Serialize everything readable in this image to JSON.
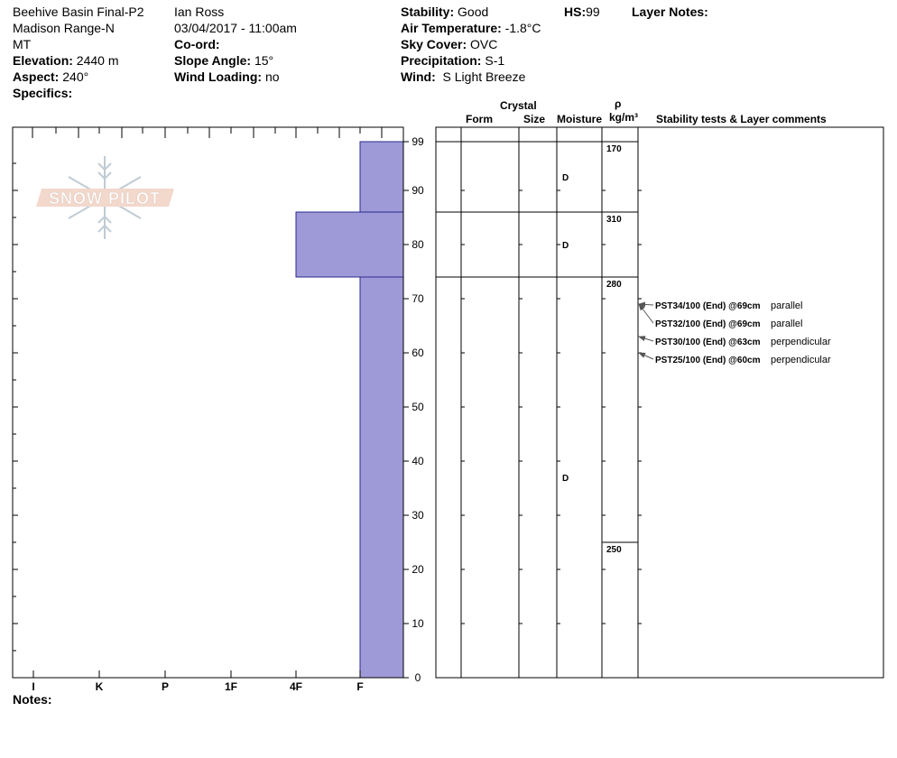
{
  "header": {
    "location": "Beehive Basin Final-P2",
    "range": "Madison Range-N",
    "state": "MT",
    "elevation_label": "Elevation:",
    "elevation": "2440 m",
    "aspect_label": "Aspect:",
    "aspect": "240°",
    "specifics_label": "Specifics:",
    "observer": "Ian Ross",
    "datetime": "03/04/2017 - 11:00am",
    "coord_label": "Co-ord:",
    "slope_label": "Slope Angle:",
    "slope": "15°",
    "wind_loading_label": "Wind Loading:",
    "wind_loading": "no",
    "stability_label": "Stability:",
    "stability": "Good",
    "air_temp_label": "Air Temperature:",
    "air_temp": "-1.8°C",
    "sky_label": "Sky Cover:",
    "sky": "OVC",
    "precip_label": "Precipitation:",
    "precip": "S-1",
    "wind_label": "Wind:",
    "wind": "S Light Breeze",
    "hs_label": "HS:",
    "hs": "99",
    "layer_notes_label": "Layer Notes:"
  },
  "columns": {
    "crystal": "Crystal",
    "form": "Form",
    "size": "Size",
    "moisture": "Moisture",
    "rho": "ρ",
    "density_unit": "kg/m³",
    "comments": "Stability tests & Layer comments"
  },
  "notes_label": "Notes:",
  "logo_text": "SNOW PILOT",
  "colors": {
    "layer_fill": "#9e9ad8",
    "layer_stroke": "#2a2a8c"
  },
  "chart_data": {
    "type": "snow-profile",
    "height_axis": {
      "min": 0,
      "max": 99,
      "ticks": [
        0,
        10,
        20,
        30,
        40,
        50,
        60,
        70,
        80,
        90,
        99
      ]
    },
    "hardness_scale": [
      "I",
      "K",
      "P",
      "1F",
      "4F",
      "F"
    ],
    "layers": [
      {
        "top": 99,
        "bottom": 86,
        "hardness": "F",
        "moisture": "D"
      },
      {
        "top": 86,
        "bottom": 74,
        "hardness": "4F",
        "moisture": "D"
      },
      {
        "top": 74,
        "bottom": 0,
        "hardness": "F",
        "moisture": "D"
      }
    ],
    "densities": [
      {
        "height": 99,
        "value": "170"
      },
      {
        "height": 86,
        "value": "310"
      },
      {
        "height": 74,
        "value": "280"
      },
      {
        "height": 25,
        "value": "250"
      }
    ],
    "tests": [
      {
        "height": 69,
        "label": "PST34/100 (End) @69cm",
        "comment": "parallel"
      },
      {
        "height": 69,
        "label": "PST32/100 (End) @69cm",
        "comment": "parallel"
      },
      {
        "height": 63,
        "label": "PST30/100 (End) @63cm",
        "comment": "perpendicular"
      },
      {
        "height": 60,
        "label": "PST25/100 (End) @60cm",
        "comment": "perpendicular"
      }
    ]
  }
}
